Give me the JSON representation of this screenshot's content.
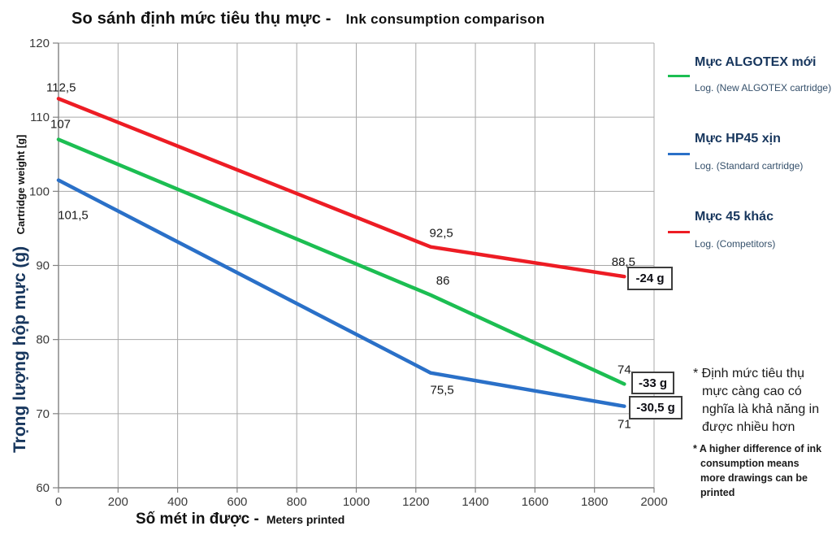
{
  "title": {
    "vi": "So sánh định mức tiêu thụ mực -",
    "en": "Ink consumption comparison"
  },
  "y_axis": {
    "label_vi": "Trọng lượng hộp mực (g)",
    "label_en": "Cartridge weight [g]"
  },
  "x_axis": {
    "label_vi": "Số mét in được -",
    "label_en": "Meters printed"
  },
  "legend": [
    {
      "name": "Mực ALGOTEX mới",
      "sub": "Log. (New ALGOTEX cartridge)",
      "color": "#1cbe52"
    },
    {
      "name": "Mực HP45 xịn",
      "sub": "Log. (Standard cartridge)",
      "color": "#2a70c8"
    },
    {
      "name": "Mực 45 khác",
      "sub": "Log. (Competitors)",
      "color": "#ed1c24"
    }
  ],
  "footnotes": {
    "vi": "* Định mức tiêu thụ mực càng cao có nghĩa là khả năng in được nhiều hơn",
    "en": "* A higher difference of ink consumption means more drawings can be printed"
  },
  "chart_data": {
    "type": "line",
    "title": "So sánh định mức tiêu thụ mực - Ink consumption comparison",
    "xlabel": "Số mét in được - Meters printed",
    "ylabel": "Trọng lượng hộp mực (g) / Cartridge weight [g]",
    "x": [
      0,
      1250,
      1900
    ],
    "xlim": [
      0,
      2000
    ],
    "ylim": [
      60,
      120
    ],
    "x_ticks": [
      0,
      200,
      400,
      600,
      800,
      1000,
      1200,
      1400,
      1600,
      1800,
      2000
    ],
    "y_ticks": [
      60,
      70,
      80,
      90,
      100,
      110,
      120
    ],
    "grid": true,
    "legend_position": "right",
    "series": [
      {
        "name": "Mực ALGOTEX mới - Log. (New ALGOTEX cartridge)",
        "color": "#1cbe52",
        "values": [
          107,
          86,
          74
        ],
        "point_labels": [
          "107",
          "86",
          "74"
        ],
        "diff_label": "-33 g"
      },
      {
        "name": "Mực HP45 xịn - Log. (Standard cartridge)",
        "color": "#2a70c8",
        "values": [
          101.5,
          75.5,
          71
        ],
        "point_labels": [
          "101,5",
          "75,5",
          "71"
        ],
        "diff_label": "-30,5 g"
      },
      {
        "name": "Mực 45 khác - Log. (Competitors)",
        "color": "#ed1c24",
        "values": [
          112.5,
          92.5,
          88.5
        ],
        "point_labels": [
          "112,5",
          "92,5",
          "88,5"
        ],
        "diff_label": "-24 g"
      }
    ]
  }
}
